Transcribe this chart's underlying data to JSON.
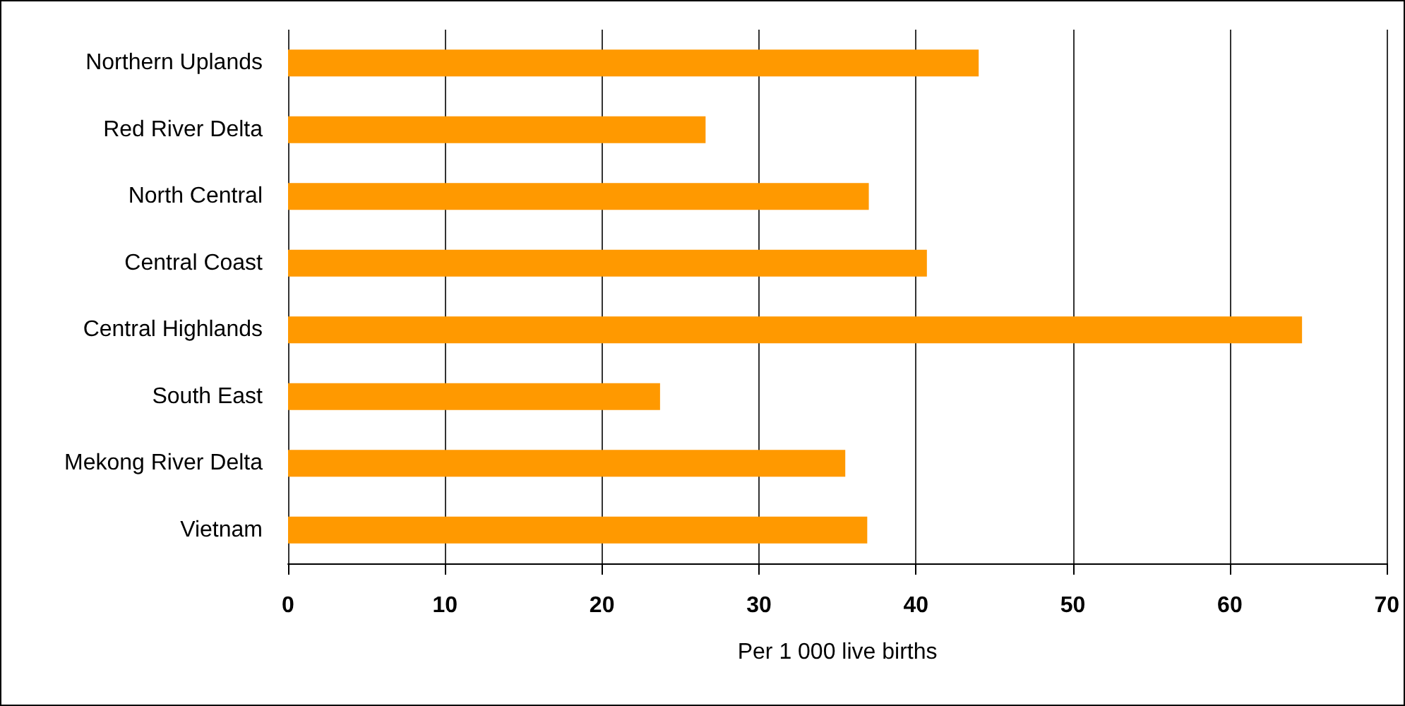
{
  "chart_data": {
    "type": "bar",
    "orientation": "horizontal",
    "xlabel": "Per 1 000 live births",
    "categories": [
      "Northern Uplands",
      "Red River Delta",
      "North Central",
      "Central Coast",
      "Central Highlands",
      "South East",
      "Mekong River Delta",
      "Vietnam"
    ],
    "values": [
      44.0,
      26.6,
      37.0,
      40.7,
      64.6,
      23.7,
      35.5,
      36.9
    ],
    "color": "#ff9900",
    "xlim": [
      0,
      70
    ],
    "xticks": [
      0,
      10,
      20,
      30,
      40,
      50,
      60,
      70
    ],
    "grid": "x"
  }
}
